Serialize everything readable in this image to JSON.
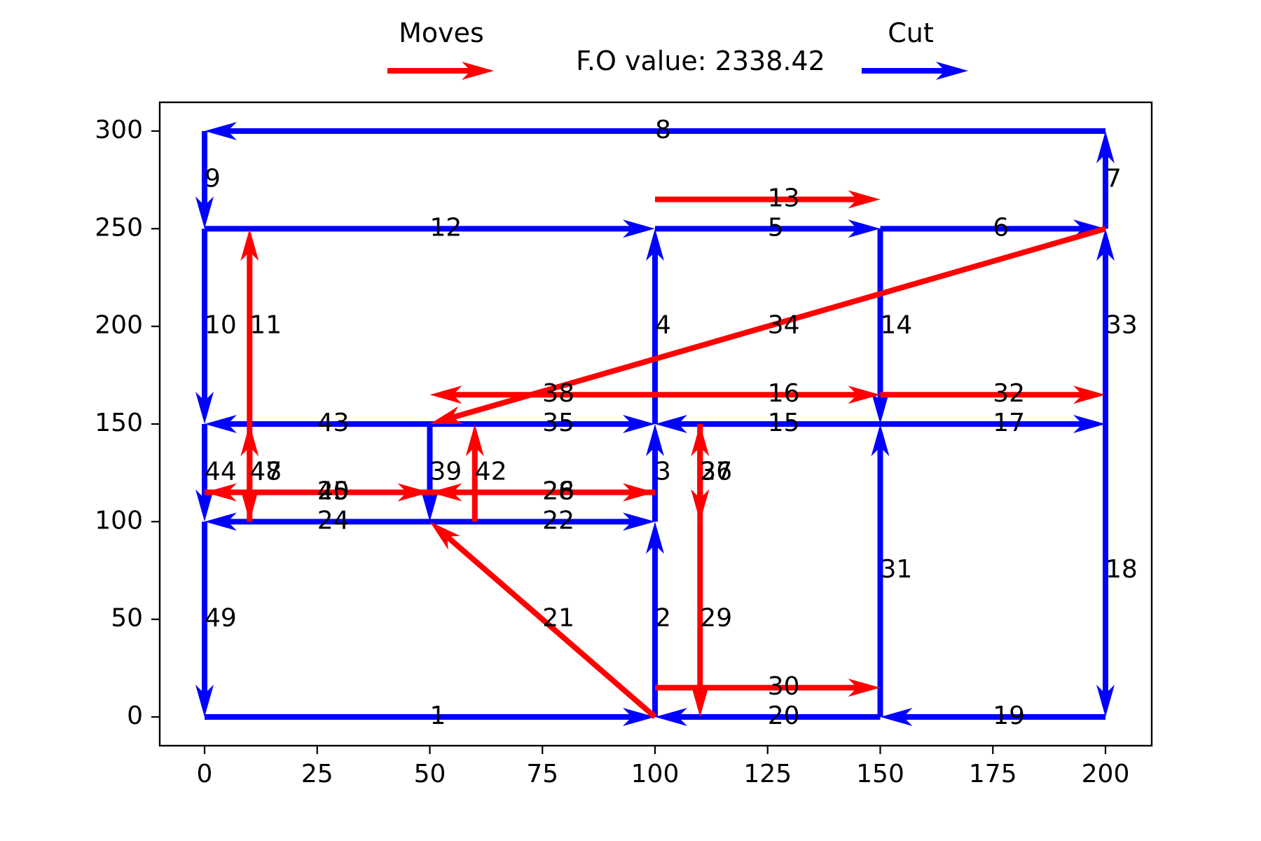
{
  "chart_data": {
    "type": "line",
    "title": "F.O value: 2338.42",
    "xlabel": "",
    "ylabel": "",
    "xlim": [
      -10,
      210
    ],
    "ylim": [
      -15,
      315
    ],
    "xticks": [
      0,
      25,
      50,
      75,
      100,
      125,
      150,
      175,
      200
    ],
    "yticks": [
      0,
      50,
      100,
      150,
      200,
      250,
      300
    ],
    "grid": false,
    "legend": [
      {
        "label": "Moves",
        "color": "#ff0000",
        "placement": "top-left"
      },
      {
        "label": "Cut",
        "color": "#0000ff",
        "placement": "top-right"
      }
    ],
    "colors": {
      "cut": "#0000ff",
      "move": "#ff0000"
    },
    "edges": [
      {
        "id": "1",
        "type": "cut",
        "from": [
          0,
          0
        ],
        "to": [
          100,
          0
        ]
      },
      {
        "id": "2",
        "type": "cut",
        "from": [
          100,
          0
        ],
        "to": [
          100,
          100
        ]
      },
      {
        "id": "3",
        "type": "cut",
        "from": [
          100,
          100
        ],
        "to": [
          100,
          150
        ]
      },
      {
        "id": "4",
        "type": "cut",
        "from": [
          100,
          150
        ],
        "to": [
          100,
          250
        ]
      },
      {
        "id": "5",
        "type": "cut",
        "from": [
          100,
          250
        ],
        "to": [
          150,
          250
        ]
      },
      {
        "id": "6",
        "type": "cut",
        "from": [
          150,
          250
        ],
        "to": [
          200,
          250
        ]
      },
      {
        "id": "7",
        "type": "cut",
        "from": [
          200,
          250
        ],
        "to": [
          200,
          300
        ]
      },
      {
        "id": "8",
        "type": "cut",
        "from": [
          200,
          300
        ],
        "to": [
          0,
          300
        ]
      },
      {
        "id": "9",
        "type": "cut",
        "from": [
          0,
          300
        ],
        "to": [
          0,
          250
        ]
      },
      {
        "id": "10",
        "type": "cut",
        "from": [
          0,
          250
        ],
        "to": [
          0,
          150
        ]
      },
      {
        "id": "11",
        "type": "move",
        "from": [
          10,
          150
        ],
        "to": [
          10,
          250
        ]
      },
      {
        "id": "12",
        "type": "cut",
        "from": [
          0,
          250
        ],
        "to": [
          100,
          250
        ]
      },
      {
        "id": "13",
        "type": "move",
        "from": [
          100,
          265
        ],
        "to": [
          150,
          265
        ]
      },
      {
        "id": "14",
        "type": "cut",
        "from": [
          150,
          250
        ],
        "to": [
          150,
          150
        ]
      },
      {
        "id": "15",
        "type": "cut",
        "from": [
          150,
          150
        ],
        "to": [
          100,
          150
        ]
      },
      {
        "id": "16",
        "type": "move",
        "from": [
          100,
          165
        ],
        "to": [
          150,
          165
        ]
      },
      {
        "id": "17",
        "type": "cut",
        "from": [
          150,
          150
        ],
        "to": [
          200,
          150
        ]
      },
      {
        "id": "18",
        "type": "cut",
        "from": [
          200,
          150
        ],
        "to": [
          200,
          0
        ]
      },
      {
        "id": "19",
        "type": "cut",
        "from": [
          200,
          0
        ],
        "to": [
          150,
          0
        ]
      },
      {
        "id": "20",
        "type": "cut",
        "from": [
          150,
          0
        ],
        "to": [
          100,
          0
        ]
      },
      {
        "id": "21",
        "type": "move",
        "from": [
          100,
          0
        ],
        "to": [
          50,
          100
        ]
      },
      {
        "id": "22",
        "type": "cut",
        "from": [
          50,
          100
        ],
        "to": [
          100,
          100
        ]
      },
      {
        "id": "24",
        "type": "cut",
        "from": [
          50,
          100
        ],
        "to": [
          0,
          100
        ]
      },
      {
        "id": "25",
        "type": "move",
        "from": [
          0,
          115
        ],
        "to": [
          50,
          115
        ]
      },
      {
        "id": "26",
        "type": "move",
        "from": [
          50,
          115
        ],
        "to": [
          100,
          115
        ]
      },
      {
        "id": "27",
        "type": "move",
        "from": [
          110,
          150
        ],
        "to": [
          110,
          100
        ]
      },
      {
        "id": "28",
        "type": "move",
        "from": [
          100,
          115
        ],
        "to": [
          50,
          115
        ]
      },
      {
        "id": "29",
        "type": "move",
        "from": [
          110,
          100
        ],
        "to": [
          110,
          0
        ]
      },
      {
        "id": "30",
        "type": "move",
        "from": [
          100,
          15
        ],
        "to": [
          150,
          15
        ]
      },
      {
        "id": "31",
        "type": "cut",
        "from": [
          150,
          0
        ],
        "to": [
          150,
          150
        ]
      },
      {
        "id": "32",
        "type": "move",
        "from": [
          150,
          165
        ],
        "to": [
          200,
          165
        ]
      },
      {
        "id": "33",
        "type": "cut",
        "from": [
          200,
          150
        ],
        "to": [
          200,
          250
        ]
      },
      {
        "id": "34",
        "type": "move",
        "from": [
          200,
          250
        ],
        "to": [
          50,
          150
        ]
      },
      {
        "id": "35",
        "type": "cut",
        "from": [
          50,
          150
        ],
        "to": [
          100,
          150
        ]
      },
      {
        "id": "36",
        "type": "move",
        "from": [
          110,
          100
        ],
        "to": [
          110,
          150
        ]
      },
      {
        "id": "37",
        "type": "move",
        "from": [
          110,
          150
        ],
        "to": [
          110,
          100
        ]
      },
      {
        "id": "38",
        "type": "move",
        "from": [
          100,
          165
        ],
        "to": [
          50,
          165
        ]
      },
      {
        "id": "39",
        "type": "cut",
        "from": [
          50,
          150
        ],
        "to": [
          50,
          100
        ]
      },
      {
        "id": "40",
        "type": "move",
        "from": [
          50,
          115
        ],
        "to": [
          0,
          115
        ]
      },
      {
        "id": "42",
        "type": "move",
        "from": [
          60,
          100
        ],
        "to": [
          60,
          150
        ]
      },
      {
        "id": "43",
        "type": "cut",
        "from": [
          50,
          150
        ],
        "to": [
          0,
          150
        ]
      },
      {
        "id": "44",
        "type": "cut",
        "from": [
          0,
          150
        ],
        "to": [
          0,
          100
        ]
      },
      {
        "id": "47",
        "type": "move",
        "from": [
          10,
          100
        ],
        "to": [
          10,
          150
        ]
      },
      {
        "id": "48",
        "type": "move",
        "from": [
          10,
          150
        ],
        "to": [
          10,
          100
        ]
      },
      {
        "id": "49",
        "type": "cut",
        "from": [
          0,
          100
        ],
        "to": [
          0,
          0
        ]
      }
    ]
  }
}
